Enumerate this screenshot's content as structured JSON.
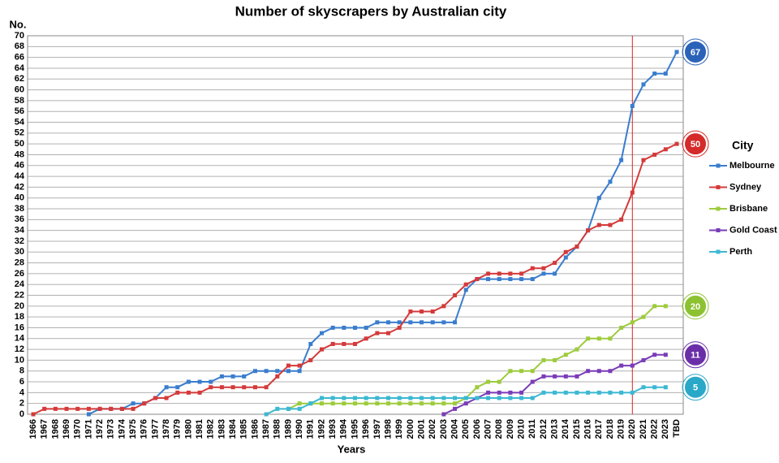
{
  "chart_data": {
    "type": "line",
    "title": "Number of skyscrapers by Australian city",
    "y_label": "No.",
    "x_label": "Years",
    "legend_title": "City",
    "legend": "right",
    "grid": true,
    "reference_x": "2020",
    "reference_color": "#e02020",
    "categories": [
      "1966",
      "1967",
      "1968",
      "1969",
      "1970",
      "1971",
      "1972",
      "1973",
      "1974",
      "1975",
      "1976",
      "1977",
      "1978",
      "1979",
      "1980",
      "1981",
      "1982",
      "1983",
      "1984",
      "1985",
      "1986",
      "1987",
      "1988",
      "1989",
      "1990",
      "1991",
      "1992",
      "1993",
      "1994",
      "1995",
      "1996",
      "1997",
      "1998",
      "1999",
      "2000",
      "2001",
      "2002",
      "2003",
      "2004",
      "2005",
      "2006",
      "2007",
      "2008",
      "2009",
      "2010",
      "2011",
      "2012",
      "2013",
      "2014",
      "2015",
      "2016",
      "2017",
      "2018",
      "2019",
      "2020",
      "2021",
      "2022",
      "2023",
      "TBD"
    ],
    "ylim": [
      0,
      70
    ],
    "yticks": [
      0,
      2,
      4,
      6,
      8,
      10,
      12,
      14,
      16,
      18,
      20,
      22,
      24,
      26,
      28,
      30,
      32,
      34,
      36,
      38,
      40,
      42,
      44,
      46,
      48,
      50,
      52,
      54,
      56,
      58,
      60,
      62,
      64,
      66,
      68,
      70
    ],
    "series": [
      {
        "name": "Melbourne",
        "color": "#3a7dcd",
        "label_color": "#2a62b8",
        "label": 67,
        "values": [
          null,
          null,
          null,
          null,
          null,
          0,
          1,
          1,
          1,
          2,
          2,
          3,
          5,
          5,
          6,
          6,
          6,
          7,
          7,
          7,
          8,
          8,
          8,
          8,
          8,
          13,
          15,
          16,
          16,
          16,
          16,
          17,
          17,
          17,
          17,
          17,
          17,
          17,
          17,
          23,
          25,
          25,
          25,
          25,
          25,
          25,
          26,
          26,
          29,
          31,
          34,
          40,
          43,
          47,
          57,
          61,
          63,
          63,
          67
        ]
      },
      {
        "name": "Sydney",
        "color": "#d43a3a",
        "label_color": "#d42a2a",
        "label": 50,
        "values": [
          0,
          1,
          1,
          1,
          1,
          1,
          1,
          1,
          1,
          1,
          2,
          3,
          3,
          4,
          4,
          4,
          5,
          5,
          5,
          5,
          5,
          5,
          7,
          9,
          9,
          10,
          12,
          13,
          13,
          13,
          14,
          15,
          15,
          16,
          19,
          19,
          19,
          20,
          22,
          24,
          25,
          26,
          26,
          26,
          26,
          27,
          27,
          28,
          30,
          31,
          34,
          35,
          35,
          36,
          41,
          47,
          48,
          49,
          50
        ]
      },
      {
        "name": "Brisbane",
        "color": "#9dcb3c",
        "label_color": "#8cc232",
        "label": 20,
        "values": [
          null,
          null,
          null,
          null,
          null,
          null,
          null,
          null,
          null,
          null,
          null,
          null,
          null,
          null,
          null,
          null,
          null,
          null,
          null,
          null,
          null,
          null,
          null,
          1,
          2,
          2,
          2,
          2,
          2,
          2,
          2,
          2,
          2,
          2,
          2,
          2,
          2,
          2,
          2,
          3,
          5,
          6,
          6,
          8,
          8,
          8,
          10,
          10,
          11,
          12,
          14,
          14,
          14,
          16,
          17,
          18,
          20,
          20,
          null
        ]
      },
      {
        "name": "Gold Coast",
        "color": "#7a3cb8",
        "label_color": "#6a2fa8",
        "label": 11,
        "values": [
          null,
          null,
          null,
          null,
          null,
          null,
          null,
          null,
          null,
          null,
          null,
          null,
          null,
          null,
          null,
          null,
          null,
          null,
          null,
          null,
          null,
          null,
          null,
          null,
          null,
          null,
          null,
          null,
          null,
          null,
          null,
          null,
          null,
          null,
          null,
          null,
          null,
          0,
          1,
          2,
          3,
          4,
          4,
          4,
          4,
          6,
          7,
          7,
          7,
          7,
          8,
          8,
          8,
          9,
          9,
          10,
          11,
          11,
          null
        ]
      },
      {
        "name": "Perth",
        "color": "#3cb8d2",
        "label_color": "#2aa8c8",
        "label": 5,
        "values": [
          null,
          null,
          null,
          null,
          null,
          null,
          null,
          null,
          null,
          null,
          null,
          null,
          null,
          null,
          null,
          null,
          null,
          null,
          null,
          null,
          null,
          0,
          1,
          1,
          1,
          2,
          3,
          3,
          3,
          3,
          3,
          3,
          3,
          3,
          3,
          3,
          3,
          3,
          3,
          3,
          3,
          3,
          3,
          3,
          3,
          3,
          4,
          4,
          4,
          4,
          4,
          4,
          4,
          4,
          4,
          5,
          5,
          5,
          null
        ]
      }
    ]
  }
}
